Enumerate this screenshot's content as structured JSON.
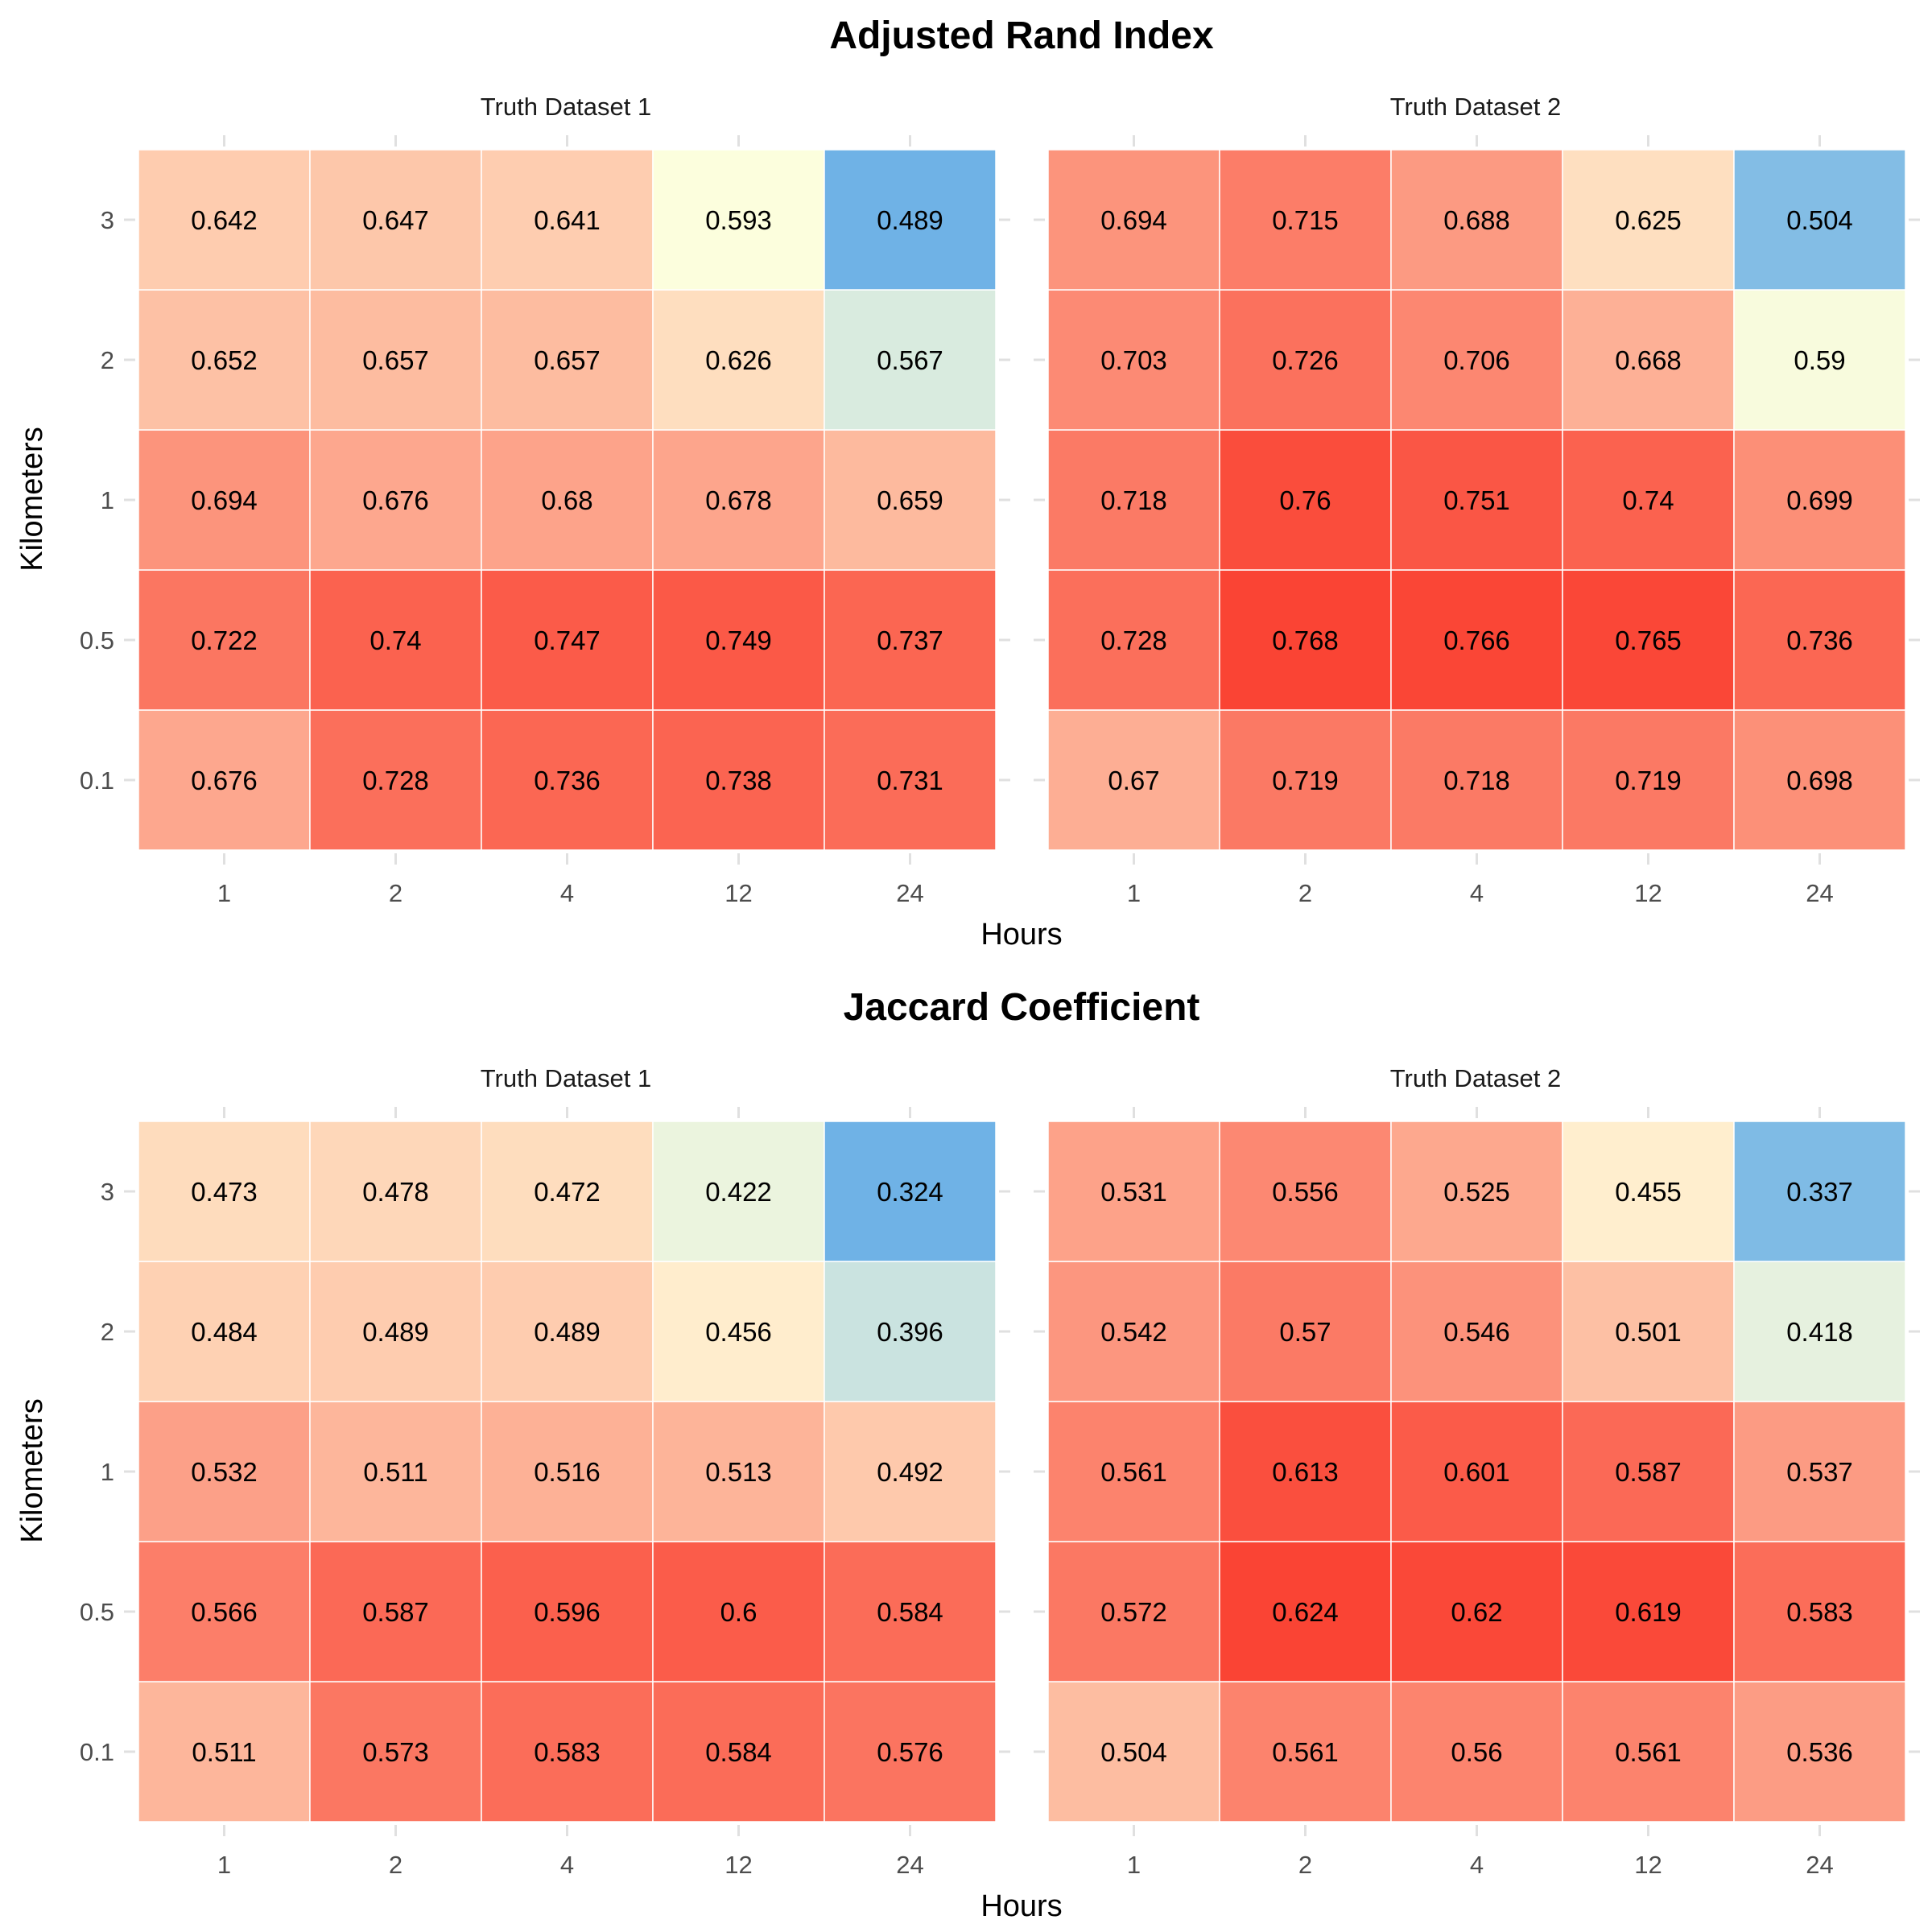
{
  "chart_data": [
    {
      "type": "heatmap",
      "title": "Adjusted Rand Index",
      "xlabel": "Hours",
      "ylabel": "Kilometers",
      "x": [
        "1",
        "2",
        "4",
        "12",
        "24"
      ],
      "y": [
        "0.1",
        "0.5",
        "1",
        "2",
        "3"
      ],
      "facets": [
        {
          "name": "Truth Dataset 1",
          "values": [
            [
              "0.676",
              "0.728",
              "0.736",
              "0.738",
              "0.731"
            ],
            [
              "0.722",
              "0.74",
              "0.747",
              "0.749",
              "0.737"
            ],
            [
              "0.694",
              "0.676",
              "0.68",
              "0.678",
              "0.659"
            ],
            [
              "0.652",
              "0.657",
              "0.657",
              "0.626",
              "0.567"
            ],
            [
              "0.642",
              "0.647",
              "0.641",
              "0.593",
              "0.489"
            ]
          ]
        },
        {
          "name": "Truth Dataset 2",
          "values": [
            [
              "0.67",
              "0.719",
              "0.718",
              "0.719",
              "0.698"
            ],
            [
              "0.728",
              "0.768",
              "0.766",
              "0.765",
              "0.736"
            ],
            [
              "0.718",
              "0.76",
              "0.751",
              "0.74",
              "0.699"
            ],
            [
              "0.703",
              "0.726",
              "0.706",
              "0.668",
              "0.59"
            ],
            [
              "0.694",
              "0.715",
              "0.688",
              "0.625",
              "0.504"
            ]
          ]
        }
      ],
      "colors": {
        "low": "#6fb2e6",
        "mid": "#ffffdd",
        "high": "#fa4434"
      }
    },
    {
      "type": "heatmap",
      "title": "Jaccard Coefficient",
      "xlabel": "Hours",
      "ylabel": "Kilometers",
      "x": [
        "1",
        "2",
        "4",
        "12",
        "24"
      ],
      "y": [
        "0.1",
        "0.5",
        "1",
        "2",
        "3"
      ],
      "facets": [
        {
          "name": "Truth Dataset 1",
          "values": [
            [
              "0.511",
              "0.573",
              "0.583",
              "0.584",
              "0.576"
            ],
            [
              "0.566",
              "0.587",
              "0.596",
              "0.6",
              "0.584"
            ],
            [
              "0.532",
              "0.511",
              "0.516",
              "0.513",
              "0.492"
            ],
            [
              "0.484",
              "0.489",
              "0.489",
              "0.456",
              "0.396"
            ],
            [
              "0.473",
              "0.478",
              "0.472",
              "0.422",
              "0.324"
            ]
          ]
        },
        {
          "name": "Truth Dataset 2",
          "values": [
            [
              "0.504",
              "0.561",
              "0.56",
              "0.561",
              "0.536"
            ],
            [
              "0.572",
              "0.624",
              "0.62",
              "0.619",
              "0.583"
            ],
            [
              "0.561",
              "0.613",
              "0.601",
              "0.587",
              "0.537"
            ],
            [
              "0.542",
              "0.57",
              "0.546",
              "0.501",
              "0.418"
            ],
            [
              "0.531",
              "0.556",
              "0.525",
              "0.455",
              "0.337"
            ]
          ]
        }
      ],
      "colors": {
        "low": "#6fb2e6",
        "mid": "#ffffdd",
        "high": "#fa4434"
      }
    }
  ]
}
